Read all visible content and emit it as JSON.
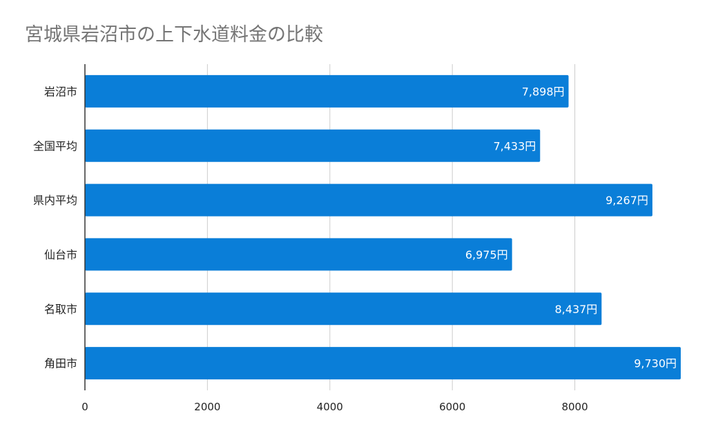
{
  "chart_data": {
    "type": "bar",
    "orientation": "horizontal",
    "title": "宮城県岩沼市の上下水道料金の比較",
    "xlabel": "",
    "ylabel": "",
    "categories": [
      "岩沼市",
      "全国平均",
      "県内平均",
      "仙台市",
      "名取市",
      "角田市"
    ],
    "values": [
      7898,
      7433,
      9267,
      6975,
      8437,
      9730
    ],
    "value_labels": [
      "7,898円",
      "7,433円",
      "9,267円",
      "6,975円",
      "8,437円",
      "9,730円"
    ],
    "xlim": [
      0,
      9730
    ],
    "xticks": [
      0,
      2000,
      4000,
      6000,
      8000
    ],
    "tick_labels": [
      "0",
      "2000",
      "4000",
      "6000",
      "8000"
    ],
    "grid": true,
    "bar_color": "#0a7ed8",
    "grid_color": "#cccccc",
    "axis_color": "#333333",
    "title_color": "#757575",
    "label_color": "#222222",
    "value_label_color": "#ffffff"
  }
}
